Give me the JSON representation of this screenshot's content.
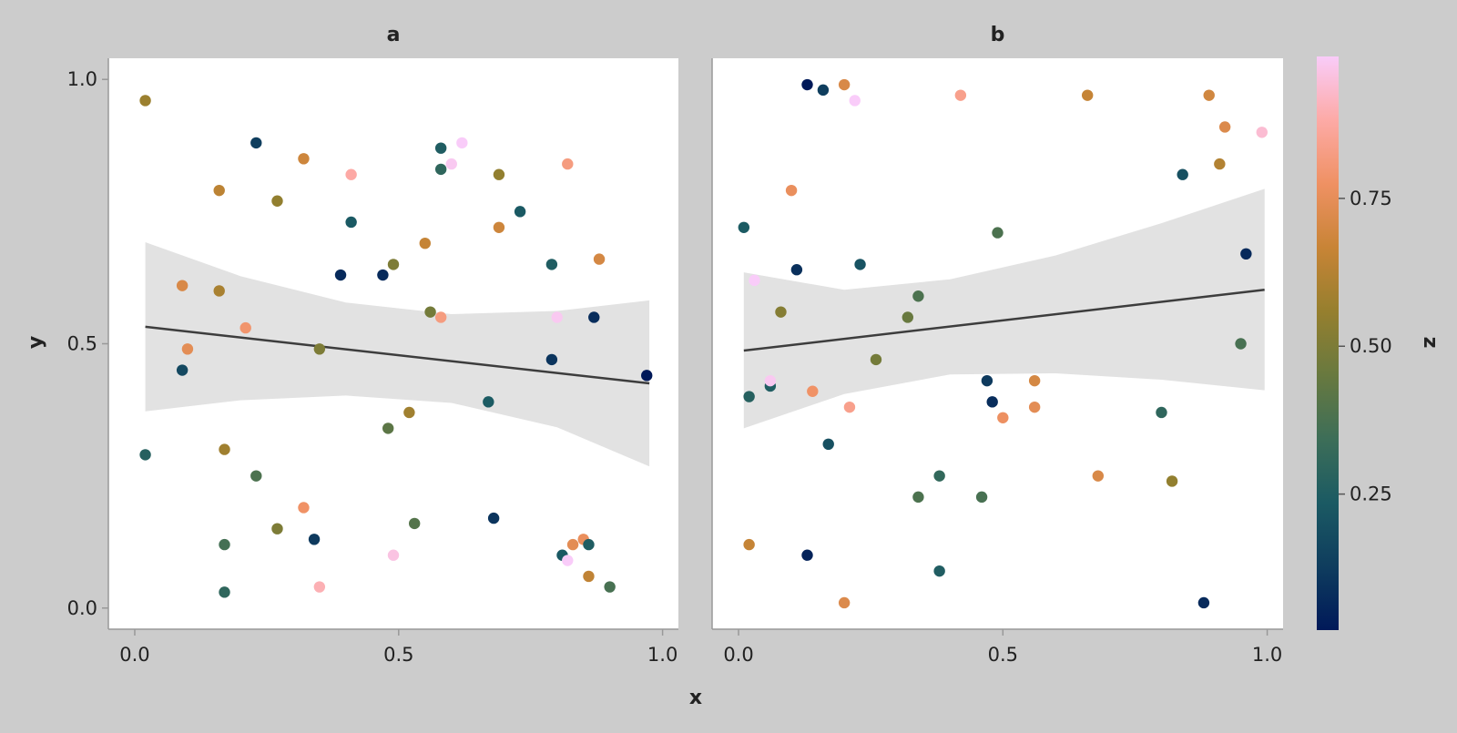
{
  "chart_data": {
    "type": "scatter",
    "xlabel": "x",
    "ylabel": "y",
    "xlim": [
      -0.05,
      1.03
    ],
    "ylim": [
      -0.04,
      1.04
    ],
    "x_ticks": [
      "0.0",
      "0.5",
      "1.0"
    ],
    "y_ticks": [
      "0.0",
      "0.5",
      "1.0"
    ],
    "colorbar": {
      "label": "z",
      "ticks": [
        "0.25",
        "0.50",
        "0.75"
      ],
      "range": [
        0.02,
        0.99
      ],
      "colormap": "batlow",
      "colors": [
        "#001959",
        "#0f3d5e",
        "#1b5a63",
        "#3d6e58",
        "#68793f",
        "#967f2e",
        "#c88436",
        "#ef9163",
        "#fdaaa6",
        "#f9ccf9"
      ]
    },
    "grid": false,
    "panels": [
      {
        "title": "a",
        "fit_line": {
          "x": [
            0.02,
            0.975
          ],
          "y": [
            0.532,
            0.425
          ]
        },
        "ci_band": {
          "x": [
            0.02,
            0.2,
            0.4,
            0.6,
            0.8,
            0.975
          ],
          "lower": [
            0.372,
            0.393,
            0.402,
            0.388,
            0.342,
            0.268
          ],
          "upper": [
            0.692,
            0.628,
            0.578,
            0.556,
            0.562,
            0.582
          ]
        },
        "points": [
          {
            "x": 0.02,
            "y": 0.96,
            "z": 0.57
          },
          {
            "x": 0.02,
            "y": 0.29,
            "z": 0.27
          },
          {
            "x": 0.09,
            "y": 0.61,
            "z": 0.71
          },
          {
            "x": 0.09,
            "y": 0.45,
            "z": 0.17
          },
          {
            "x": 0.1,
            "y": 0.49,
            "z": 0.74
          },
          {
            "x": 0.16,
            "y": 0.79,
            "z": 0.64
          },
          {
            "x": 0.16,
            "y": 0.6,
            "z": 0.6
          },
          {
            "x": 0.17,
            "y": 0.3,
            "z": 0.58
          },
          {
            "x": 0.17,
            "y": 0.12,
            "z": 0.36
          },
          {
            "x": 0.17,
            "y": 0.03,
            "z": 0.3
          },
          {
            "x": 0.21,
            "y": 0.53,
            "z": 0.79
          },
          {
            "x": 0.23,
            "y": 0.88,
            "z": 0.13
          },
          {
            "x": 0.23,
            "y": 0.25,
            "z": 0.38
          },
          {
            "x": 0.27,
            "y": 0.77,
            "z": 0.55
          },
          {
            "x": 0.27,
            "y": 0.15,
            "z": 0.5
          },
          {
            "x": 0.32,
            "y": 0.85,
            "z": 0.68
          },
          {
            "x": 0.32,
            "y": 0.19,
            "z": 0.78
          },
          {
            "x": 0.34,
            "y": 0.13,
            "z": 0.12
          },
          {
            "x": 0.35,
            "y": 0.49,
            "z": 0.5
          },
          {
            "x": 0.35,
            "y": 0.04,
            "z": 0.9
          },
          {
            "x": 0.39,
            "y": 0.63,
            "z": 0.07
          },
          {
            "x": 0.41,
            "y": 0.82,
            "z": 0.88
          },
          {
            "x": 0.41,
            "y": 0.73,
            "z": 0.23
          },
          {
            "x": 0.47,
            "y": 0.63,
            "z": 0.07
          },
          {
            "x": 0.48,
            "y": 0.34,
            "z": 0.42
          },
          {
            "x": 0.49,
            "y": 0.65,
            "z": 0.5
          },
          {
            "x": 0.49,
            "y": 0.1,
            "z": 0.96
          },
          {
            "x": 0.52,
            "y": 0.37,
            "z": 0.58
          },
          {
            "x": 0.53,
            "y": 0.16,
            "z": 0.4
          },
          {
            "x": 0.55,
            "y": 0.69,
            "z": 0.66
          },
          {
            "x": 0.56,
            "y": 0.56,
            "z": 0.48
          },
          {
            "x": 0.58,
            "y": 0.55,
            "z": 0.82
          },
          {
            "x": 0.58,
            "y": 0.87,
            "z": 0.25
          },
          {
            "x": 0.58,
            "y": 0.83,
            "z": 0.3
          },
          {
            "x": 0.6,
            "y": 0.84,
            "z": 0.98
          },
          {
            "x": 0.62,
            "y": 0.88,
            "z": 0.99
          },
          {
            "x": 0.67,
            "y": 0.39,
            "z": 0.24
          },
          {
            "x": 0.68,
            "y": 0.17,
            "z": 0.1
          },
          {
            "x": 0.69,
            "y": 0.82,
            "z": 0.55
          },
          {
            "x": 0.69,
            "y": 0.72,
            "z": 0.68
          },
          {
            "x": 0.73,
            "y": 0.75,
            "z": 0.23
          },
          {
            "x": 0.79,
            "y": 0.65,
            "z": 0.25
          },
          {
            "x": 0.79,
            "y": 0.47,
            "z": 0.1
          },
          {
            "x": 0.8,
            "y": 0.55,
            "z": 0.98
          },
          {
            "x": 0.81,
            "y": 0.1,
            "z": 0.23
          },
          {
            "x": 0.82,
            "y": 0.84,
            "z": 0.82
          },
          {
            "x": 0.82,
            "y": 0.09,
            "z": 0.99
          },
          {
            "x": 0.83,
            "y": 0.12,
            "z": 0.74
          },
          {
            "x": 0.85,
            "y": 0.13,
            "z": 0.76
          },
          {
            "x": 0.86,
            "y": 0.12,
            "z": 0.25
          },
          {
            "x": 0.86,
            "y": 0.06,
            "z": 0.65
          },
          {
            "x": 0.87,
            "y": 0.55,
            "z": 0.08
          },
          {
            "x": 0.88,
            "y": 0.66,
            "z": 0.7
          },
          {
            "x": 0.9,
            "y": 0.04,
            "z": 0.37
          },
          {
            "x": 0.97,
            "y": 0.44,
            "z": 0.02
          }
        ]
      },
      {
        "title": "b",
        "fit_line": {
          "x": [
            0.01,
            0.995
          ],
          "y": [
            0.487,
            0.602
          ]
        },
        "ci_band": {
          "x": [
            0.01,
            0.2,
            0.4,
            0.6,
            0.8,
            0.995
          ],
          "lower": [
            0.34,
            0.405,
            0.442,
            0.444,
            0.432,
            0.412
          ],
          "upper": [
            0.635,
            0.602,
            0.622,
            0.667,
            0.728,
            0.793
          ]
        },
        "points": [
          {
            "x": 0.01,
            "y": 0.72,
            "z": 0.24
          },
          {
            "x": 0.02,
            "y": 0.4,
            "z": 0.27
          },
          {
            "x": 0.02,
            "y": 0.12,
            "z": 0.66
          },
          {
            "x": 0.03,
            "y": 0.62,
            "z": 0.99
          },
          {
            "x": 0.06,
            "y": 0.42,
            "z": 0.25
          },
          {
            "x": 0.06,
            "y": 0.43,
            "z": 0.98
          },
          {
            "x": 0.08,
            "y": 0.56,
            "z": 0.52
          },
          {
            "x": 0.1,
            "y": 0.79,
            "z": 0.76
          },
          {
            "x": 0.11,
            "y": 0.64,
            "z": 0.09
          },
          {
            "x": 0.13,
            "y": 0.99,
            "z": 0.02
          },
          {
            "x": 0.13,
            "y": 0.1,
            "z": 0.05
          },
          {
            "x": 0.14,
            "y": 0.41,
            "z": 0.78
          },
          {
            "x": 0.16,
            "y": 0.98,
            "z": 0.13
          },
          {
            "x": 0.17,
            "y": 0.31,
            "z": 0.2
          },
          {
            "x": 0.2,
            "y": 0.99,
            "z": 0.71
          },
          {
            "x": 0.2,
            "y": 0.01,
            "z": 0.72
          },
          {
            "x": 0.21,
            "y": 0.38,
            "z": 0.84
          },
          {
            "x": 0.22,
            "y": 0.96,
            "z": 0.99
          },
          {
            "x": 0.23,
            "y": 0.65,
            "z": 0.21
          },
          {
            "x": 0.26,
            "y": 0.47,
            "z": 0.48
          },
          {
            "x": 0.32,
            "y": 0.55,
            "z": 0.45
          },
          {
            "x": 0.34,
            "y": 0.59,
            "z": 0.38
          },
          {
            "x": 0.34,
            "y": 0.21,
            "z": 0.38
          },
          {
            "x": 0.38,
            "y": 0.25,
            "z": 0.31
          },
          {
            "x": 0.38,
            "y": 0.07,
            "z": 0.25
          },
          {
            "x": 0.42,
            "y": 0.97,
            "z": 0.84
          },
          {
            "x": 0.46,
            "y": 0.21,
            "z": 0.37
          },
          {
            "x": 0.47,
            "y": 0.43,
            "z": 0.12
          },
          {
            "x": 0.48,
            "y": 0.39,
            "z": 0.08
          },
          {
            "x": 0.49,
            "y": 0.71,
            "z": 0.38
          },
          {
            "x": 0.5,
            "y": 0.36,
            "z": 0.77
          },
          {
            "x": 0.56,
            "y": 0.43,
            "z": 0.7
          },
          {
            "x": 0.56,
            "y": 0.38,
            "z": 0.74
          },
          {
            "x": 0.66,
            "y": 0.97,
            "z": 0.66
          },
          {
            "x": 0.68,
            "y": 0.25,
            "z": 0.71
          },
          {
            "x": 0.8,
            "y": 0.37,
            "z": 0.3
          },
          {
            "x": 0.82,
            "y": 0.24,
            "z": 0.55
          },
          {
            "x": 0.84,
            "y": 0.82,
            "z": 0.2
          },
          {
            "x": 0.88,
            "y": 0.01,
            "z": 0.07
          },
          {
            "x": 0.89,
            "y": 0.97,
            "z": 0.69
          },
          {
            "x": 0.91,
            "y": 0.84,
            "z": 0.62
          },
          {
            "x": 0.92,
            "y": 0.91,
            "z": 0.72
          },
          {
            "x": 0.95,
            "y": 0.5,
            "z": 0.37
          },
          {
            "x": 0.96,
            "y": 0.67,
            "z": 0.07
          },
          {
            "x": 0.99,
            "y": 0.9,
            "z": 0.94
          }
        ]
      }
    ]
  }
}
